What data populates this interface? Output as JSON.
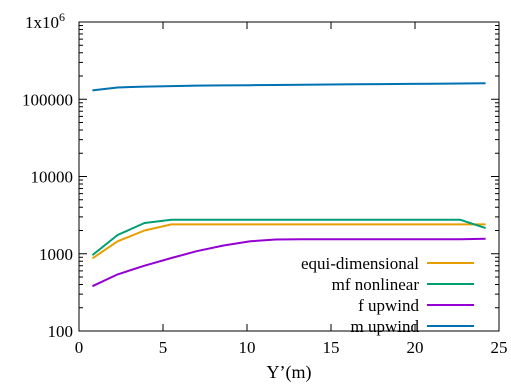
{
  "chart_data": {
    "type": "line",
    "title": "",
    "xlabel": "Y’(m)",
    "ylabel": "",
    "xlim": [
      0,
      25
    ],
    "ylim": [
      100,
      1000000
    ],
    "yscale": "log",
    "grid": false,
    "legend_position": "bottom-right",
    "x_ticks": [
      0,
      5,
      10,
      15,
      20,
      25
    ],
    "x_tick_labels": [
      "0",
      "5",
      "10",
      "15",
      "20",
      "25"
    ],
    "y_ticks": [
      100,
      1000,
      10000,
      100000,
      1000000
    ],
    "y_tick_labels": [
      "100",
      "1000",
      "10000",
      "100000",
      "1x10"
    ],
    "y_top_label_exponent": "6",
    "series": [
      {
        "name": "equi-dimensional",
        "color": "#e69f00",
        "x": [
          0.8,
          2.3,
          3.9,
          5.5,
          7.0,
          8.6,
          10.2,
          11.7,
          13.3,
          14.9,
          16.4,
          18.0,
          19.6,
          21.1,
          22.7,
          24.2
        ],
        "y": [
          870,
          1450,
          2000,
          2400,
          2400,
          2400,
          2400,
          2400,
          2400,
          2400,
          2400,
          2400,
          2400,
          2400,
          2400,
          2400
        ]
      },
      {
        "name": "mf nonlinear",
        "color": "#009e73",
        "x": [
          0.8,
          2.3,
          3.9,
          5.5,
          7.0,
          8.6,
          10.2,
          11.7,
          13.3,
          14.9,
          16.4,
          18.0,
          19.6,
          21.1,
          22.7,
          24.2
        ],
        "y": [
          960,
          1750,
          2500,
          2750,
          2750,
          2750,
          2750,
          2750,
          2750,
          2750,
          2750,
          2750,
          2750,
          2750,
          2750,
          2150
        ]
      },
      {
        "name": "f upwind",
        "color": "#9400d3",
        "x": [
          0.8,
          2.3,
          3.9,
          5.5,
          7.0,
          8.6,
          10.2,
          11.7,
          13.3,
          14.9,
          16.4,
          18.0,
          19.6,
          21.1,
          22.7,
          24.2
        ],
        "y": [
          380,
          540,
          700,
          880,
          1080,
          1280,
          1450,
          1530,
          1540,
          1540,
          1540,
          1540,
          1540,
          1540,
          1540,
          1560
        ]
      },
      {
        "name": "m upwind",
        "color": "#0072b2",
        "x": [
          0.8,
          2.3,
          3.9,
          5.5,
          7.0,
          8.6,
          10.2,
          11.7,
          13.3,
          14.9,
          16.4,
          18.0,
          19.6,
          21.1,
          22.7,
          24.2
        ],
        "y": [
          130000,
          142000,
          146000,
          148000,
          150000,
          151000,
          152000,
          153000,
          154000,
          155000,
          156000,
          157000,
          158000,
          159000,
          160000,
          161000
        ]
      }
    ]
  }
}
